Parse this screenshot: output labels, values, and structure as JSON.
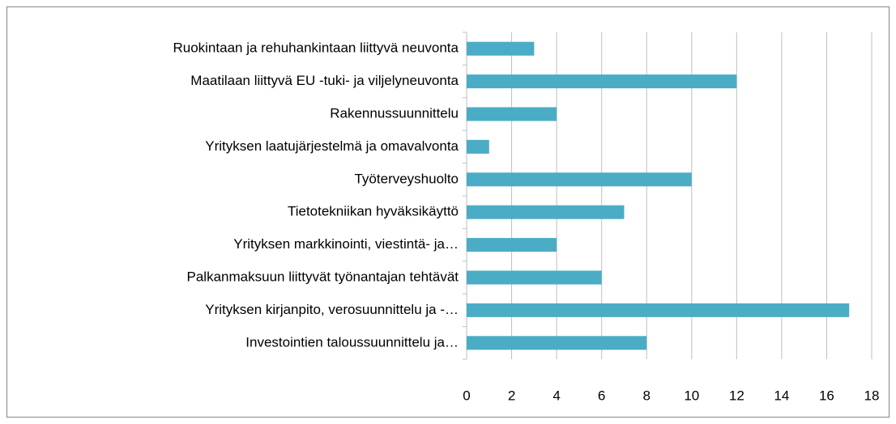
{
  "chart_data": {
    "type": "bar",
    "orientation": "horizontal",
    "categories": [
      "Ruokintaan ja rehuhankintaan liittyvä neuvonta",
      "Maatilaan liittyvä EU -tuki- ja viljelyneuvonta",
      "Rakennussuunnittelu",
      "Yrityksen laatujärjestelmä ja omavalvonta",
      "Työterveyshuolto",
      "Tietotekniikan hyväksikäyttö",
      "Yrityksen markkinointi, viestintä- ja…",
      "Palkanmaksuun liittyvät työnantajan tehtävät",
      "Yrityksen kirjanpito, verosuunnittelu ja -…",
      "Investointien taloussuunnittelu ja…"
    ],
    "values": [
      3,
      12,
      4,
      1,
      10,
      7,
      4,
      6,
      17,
      8
    ],
    "color": "#4bacc6",
    "xlim": [
      0,
      18
    ],
    "xticks": [
      0,
      2,
      4,
      6,
      8,
      10,
      12,
      14,
      16,
      18
    ],
    "grid": true
  }
}
